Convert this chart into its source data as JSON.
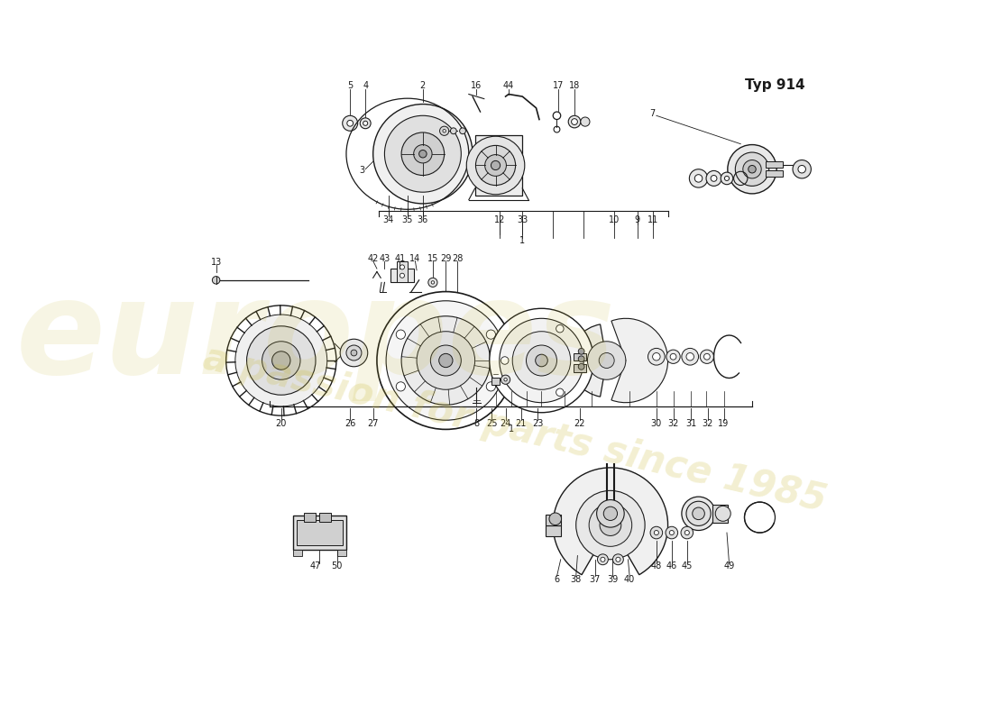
{
  "title": "Typ 914",
  "bg_color": "#ffffff",
  "line_color": "#1a1a1a",
  "fig_width": 11.0,
  "fig_height": 8.0,
  "dpi": 100,
  "watermark_color1": "#c8b830",
  "watermark_color2": "#c8b830"
}
